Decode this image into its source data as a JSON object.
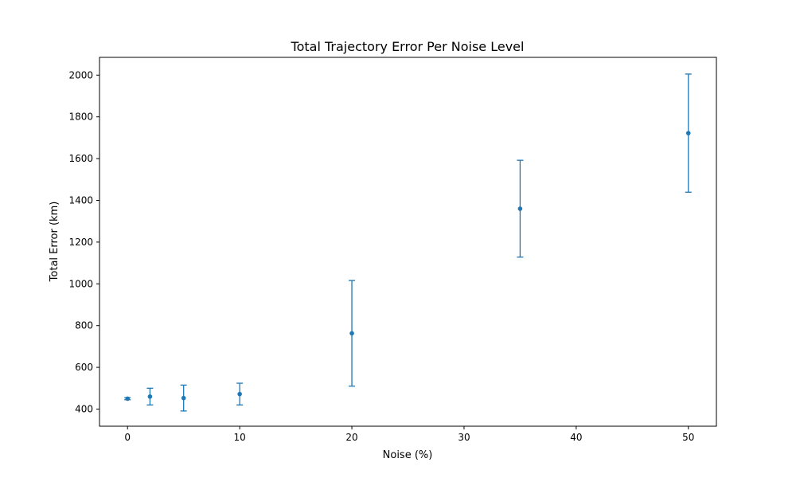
{
  "chart_data": {
    "type": "scatter",
    "title": "Total Trajectory Error Per Noise Level",
    "xlabel": "Noise (%)",
    "ylabel": "Total Error (km)",
    "xlim": [
      -2.5,
      52.5
    ],
    "ylim": [
      318,
      2085
    ],
    "xticks": [
      0,
      10,
      20,
      30,
      40,
      50
    ],
    "yticks": [
      400,
      600,
      800,
      1000,
      1200,
      1400,
      1600,
      1800,
      2000
    ],
    "grid": false,
    "color": "#1f77b4",
    "series": [
      {
        "x": [
          0,
          2,
          5,
          10,
          20,
          35,
          50
        ],
        "y": [
          450,
          460,
          453,
          472,
          763,
          1360,
          1722
        ],
        "error": [
          5,
          40,
          62,
          52,
          253,
          232,
          283
        ]
      }
    ]
  }
}
